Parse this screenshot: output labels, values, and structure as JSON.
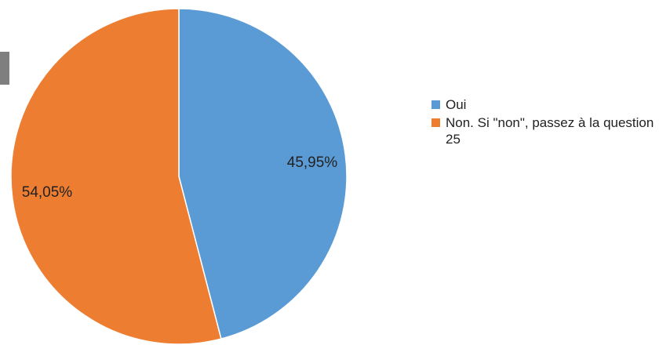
{
  "chart_data": {
    "type": "pie",
    "title": "",
    "categories": [
      "Oui",
      "Non. Si \"non\", passez à la question 25"
    ],
    "values": [
      45.95,
      54.05
    ],
    "labels": [
      "45,95%",
      "54,05%"
    ],
    "colors": [
      "#5b9bd5",
      "#ed7d31"
    ],
    "legend_position": "right",
    "start_angle": "12 o'clock, clockwise"
  },
  "legend": {
    "items": [
      {
        "label": "Oui",
        "color": "#5b9bd5"
      },
      {
        "label": "Non. Si \"non\", passez à la question 25",
        "color": "#ed7d31"
      }
    ]
  }
}
